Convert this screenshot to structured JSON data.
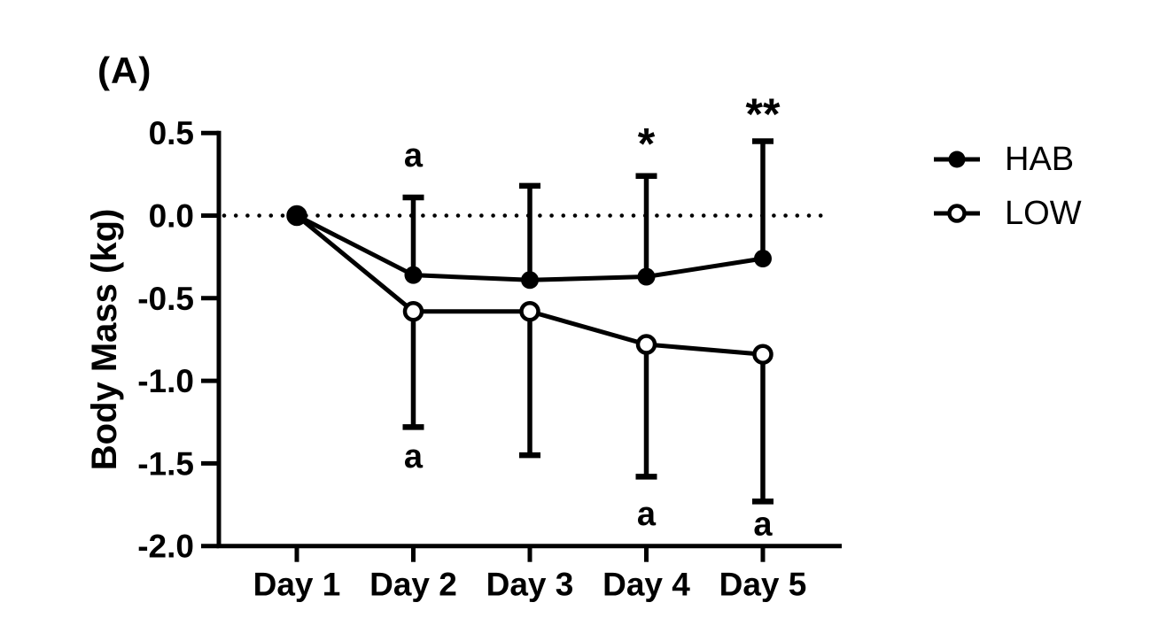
{
  "panel_label": "(A)",
  "colors": {
    "foreground": "#000000",
    "background": "#ffffff"
  },
  "legend": {
    "items": [
      "HAB",
      "LOW"
    ]
  },
  "chart_data": {
    "type": "line",
    "title": "",
    "xlabel": "",
    "ylabel": "Body Mass (kg)",
    "categories": [
      "Day 1",
      "Day 2",
      "Day 3",
      "Day 4",
      "Day 5"
    ],
    "ylim": [
      -2.0,
      0.5
    ],
    "yticks": [
      0.5,
      0.0,
      -0.5,
      -1.0,
      -1.5,
      -2.0
    ],
    "ytick_labels": [
      "0.5",
      "0.0",
      "-0.5",
      "-1.0",
      "-1.5",
      "-2.0"
    ],
    "grid": false,
    "legend_position": "right",
    "zero_reference_line": {
      "y": 0,
      "style": "dotted"
    },
    "series": [
      {
        "name": "HAB",
        "marker": "filled-circle",
        "values": [
          0.0,
          -0.36,
          -0.39,
          -0.37,
          -0.26
        ],
        "error_up": [
          0,
          0.47,
          0.57,
          0.61,
          0.71
        ],
        "error_down": [
          0,
          0,
          0,
          0,
          0
        ]
      },
      {
        "name": "LOW",
        "marker": "open-circle",
        "values": [
          0.0,
          -0.58,
          -0.58,
          -0.78,
          -0.84
        ],
        "error_up": [
          0,
          0,
          0,
          0,
          0
        ],
        "error_down": [
          0,
          0.7,
          0.87,
          0.8,
          0.89
        ]
      }
    ],
    "annotations": [
      {
        "text": "a",
        "category": "Day 2",
        "value": 0.35
      },
      {
        "text": "a",
        "category": "Day 2",
        "value": -1.47
      },
      {
        "text": "a",
        "category": "Day 4",
        "value": -1.82
      },
      {
        "text": "a",
        "category": "Day 5",
        "value": -1.88
      },
      {
        "text": "*",
        "category": "Day 4",
        "value": 0.49
      },
      {
        "text": "**",
        "category": "Day 5",
        "value": 0.67
      }
    ]
  }
}
